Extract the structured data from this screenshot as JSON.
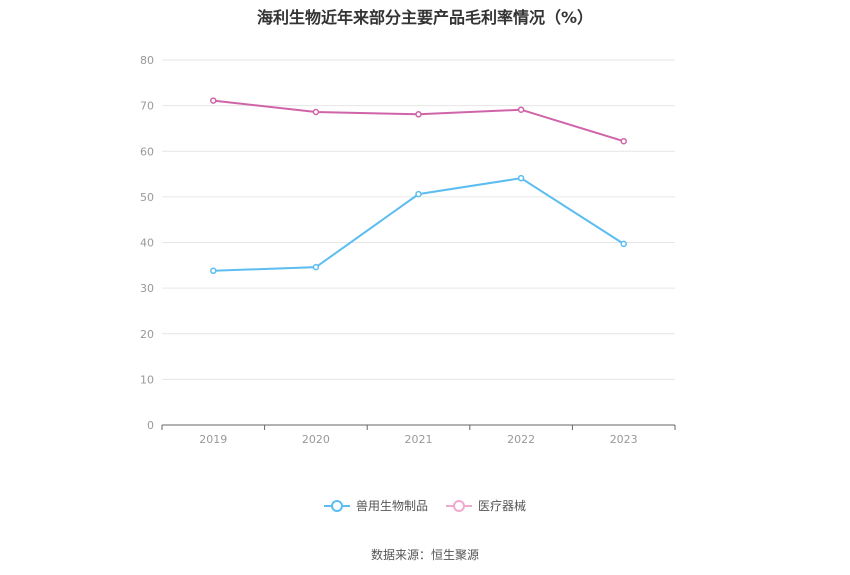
{
  "title": "海利生物近年来部分主要产品毛利率情况（%）",
  "source": "数据来源：恒生聚源",
  "chart_data": {
    "type": "line",
    "title": "海利生物近年来部分主要产品毛利率情况（%）",
    "categories": [
      "2019",
      "2020",
      "2021",
      "2022",
      "2023"
    ],
    "series": [
      {
        "name": "兽用生物制品",
        "values": [
          33.8,
          34.6,
          50.6,
          54.1,
          39.7
        ],
        "color": "#5bbdf0"
      },
      {
        "name": "医疗器械",
        "values": [
          71.1,
          68.6,
          68.1,
          69.1,
          62.2
        ],
        "color": "#d064a8"
      }
    ],
    "ylim": [
      0,
      80
    ],
    "yticks": [
      0,
      10,
      20,
      30,
      40,
      50,
      60,
      70,
      80
    ],
    "grid": true,
    "legend_position": "bottom-center"
  }
}
